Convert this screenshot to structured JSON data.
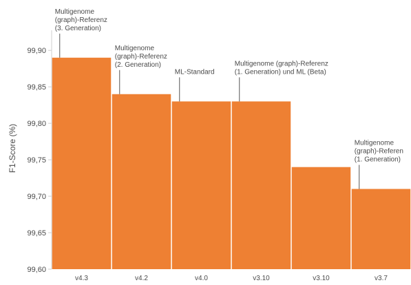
{
  "chart_data": {
    "type": "bar",
    "title": "",
    "xlabel": "",
    "ylabel": "F1-Score (%)",
    "ylim": [
      99.6,
      99.92
    ],
    "yticks": [
      "99,60",
      "99,65",
      "99,70",
      "99,75",
      "99,80",
      "99,85",
      "99,90"
    ],
    "ytick_values": [
      99.6,
      99.65,
      99.7,
      99.75,
      99.8,
      99.85,
      99.9
    ],
    "categories": [
      "v4.3",
      "v4.2",
      "v4.0",
      "v3.10",
      "v3.10",
      "v3.7"
    ],
    "values": [
      99.89,
      99.84,
      99.83,
      99.83,
      99.74,
      99.71
    ],
    "grid": false,
    "bar_color": "#ee8033",
    "annotations": [
      {
        "bar": 0,
        "lines": [
          "Multigenome",
          "(graph)-Referenz",
          "(3. Generation)"
        ]
      },
      {
        "bar": 1,
        "lines": [
          "Multigenome",
          "(graph)-Referenz",
          "(2. Generation)"
        ]
      },
      {
        "bar": 2,
        "lines": [
          "ML-Standard"
        ]
      },
      {
        "bar": 3,
        "lines": [
          "Multigenome (graph)-Referenz",
          "(1. Generation) und ML (Beta)"
        ]
      },
      {
        "bar": 5,
        "lines": [
          "Multigenome",
          "(graph)-Referen",
          "(1. Generation)"
        ]
      }
    ]
  }
}
